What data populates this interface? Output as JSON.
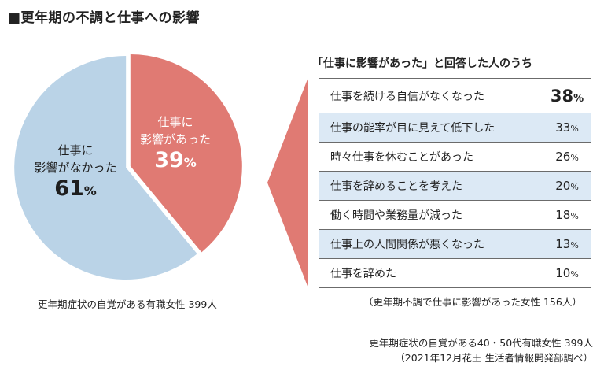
{
  "title": "■更年期の不調と仕事への影響",
  "colors": {
    "affected": "#e07a73",
    "not_affected": "#bad3e7",
    "row_shade": "#dce9f5"
  },
  "chart_data": [
    {
      "type": "pie",
      "slices": [
        {
          "label_line1": "仕事に",
          "label_line2": "影響があった",
          "value": 39,
          "unit": "%"
        },
        {
          "label_line1": "仕事に",
          "label_line2": "影響がなかった",
          "value": 61,
          "unit": "%"
        }
      ],
      "note": "更年期症状の自覚がある有職女性 399人"
    },
    {
      "type": "table",
      "title": "「仕事に影響があった」と回答した人のうち",
      "rows": [
        {
          "label": "仕事を続ける自信がなくなった",
          "value": 38,
          "unit": "%"
        },
        {
          "label": "仕事の能率が目に見えて低下した",
          "value": 33,
          "unit": "%"
        },
        {
          "label": "時々仕事を休むことがあった",
          "value": 26,
          "unit": "%"
        },
        {
          "label": "仕事を辞めることを考えた",
          "value": 20,
          "unit": "%"
        },
        {
          "label": "働く時間や業務量が減った",
          "value": 18,
          "unit": "%"
        },
        {
          "label": "仕事上の人間関係が悪くなった",
          "value": 13,
          "unit": "%"
        },
        {
          "label": "仕事を辞めた",
          "value": 10,
          "unit": "%"
        }
      ],
      "note": "（更年期不調で仕事に影響があった女性 156人）"
    }
  ],
  "source": {
    "line1": "更年期症状の自覚がある40・50代有職女性 399人",
    "line2": "（2021年12月花王 生活者情報開発部調べ）"
  }
}
